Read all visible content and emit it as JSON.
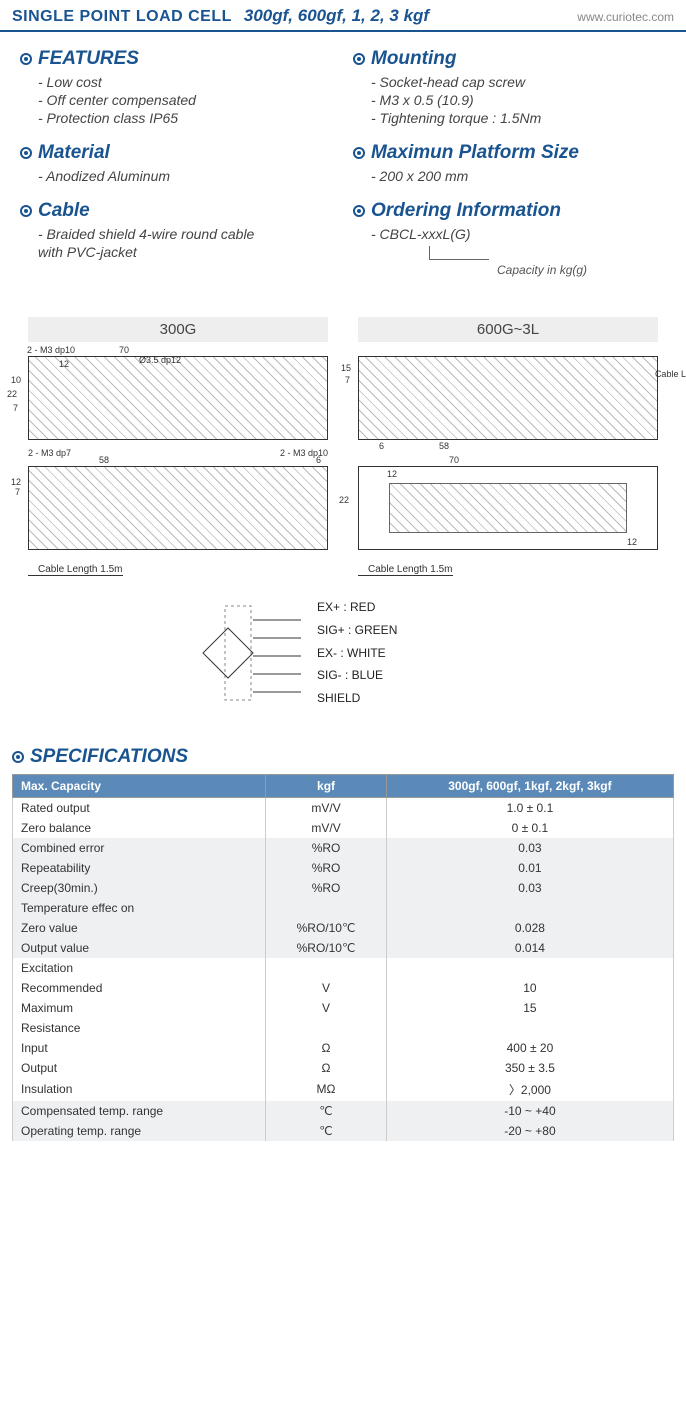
{
  "header": {
    "title": "SINGLE POINT LOAD CELL",
    "subtitle": "300gf, 600gf, 1, 2, 3 kgf",
    "url": "www.curiotec.com"
  },
  "left_sections": [
    {
      "title": "FEATURES",
      "items": [
        "- Low cost",
        "- Off center compensated",
        "- Protection class IP65"
      ]
    },
    {
      "title": "Material",
      "items": [
        "- Anodized Aluminum"
      ]
    },
    {
      "title": "Cable",
      "items": [
        "- Braided shield 4-wire round cable",
        "  with PVC-jacket"
      ]
    }
  ],
  "right_sections": [
    {
      "title": "Mounting",
      "items": [
        "- Socket-head cap screw",
        "- M3 x 0.5 (10.9)",
        "- Tightening torque : 1.5Nm"
      ]
    },
    {
      "title": "Maximun Platform Size",
      "items": [
        "- 200 x 200 mm"
      ]
    },
    {
      "title": "Ordering Information",
      "items": [
        "- CBCL-xxxL(G)"
      ]
    }
  ],
  "ordering_caption": "Capacity in kg(g)",
  "diagrams": {
    "left_label": "300G",
    "right_label": "600G~3L",
    "dims_300g_top": [
      "2 - M3 dp10",
      "70",
      "12",
      "Ø3.5 dp12",
      "10",
      "22",
      "7",
      "2 - M3 dp7",
      "12",
      "2 - M3 dp10"
    ],
    "dims_300g_bot": [
      "58",
      "6",
      "12",
      "7"
    ],
    "dims_600_top": [
      "15",
      "7",
      "6",
      "58"
    ],
    "dims_600_bot": [
      "70",
      "12",
      "22",
      "12"
    ],
    "cable_note": "Cable Length 1.5m"
  },
  "wiring": [
    "EX+ : RED",
    "SIG+ : GREEN",
    "EX- : WHITE",
    "SIG- : BLUE",
    "SHIELD"
  ],
  "specs_title": "SPECIFICATIONS",
  "spec_header": {
    "c0": "Max. Capacity",
    "c1": "kgf",
    "c2": "300gf, 600gf, 1kgf, 2kgf, 3kgf"
  },
  "spec_rows": [
    {
      "shade": false,
      "label": "Rated output",
      "sub": "",
      "unit": "mV/V",
      "val": "1.0 ± 0.1"
    },
    {
      "shade": false,
      "label": "Zero balance",
      "sub": "",
      "unit": "mV/V",
      "val": "0 ± 0.1"
    },
    {
      "shade": true,
      "label": "Combined error",
      "sub": "",
      "unit": "%RO",
      "val": "0.03"
    },
    {
      "shade": true,
      "label": "Repeatability",
      "sub": "",
      "unit": "%RO",
      "val": "0.01"
    },
    {
      "shade": true,
      "label": "Creep(30min.)",
      "sub": "",
      "unit": "%RO",
      "val": "0.03"
    },
    {
      "shade": true,
      "label": "Temperature effec on",
      "sub": "",
      "unit": "",
      "val": ""
    },
    {
      "shade": true,
      "label": "",
      "sub": "Zero value",
      "unit": "%RO/10℃",
      "val": "0.028"
    },
    {
      "shade": true,
      "label": "",
      "sub": "Output value",
      "unit": "%RO/10℃",
      "val": "0.014"
    },
    {
      "shade": false,
      "label": "Excitation",
      "sub": "",
      "unit": "",
      "val": ""
    },
    {
      "shade": false,
      "label": "",
      "sub": "Recommended",
      "unit": "V",
      "val": "10"
    },
    {
      "shade": false,
      "label": "",
      "sub": "Maximum",
      "unit": "V",
      "val": "15"
    },
    {
      "shade": false,
      "label": "Resistance",
      "sub": "",
      "unit": "",
      "val": ""
    },
    {
      "shade": false,
      "label": "",
      "sub": "Input",
      "unit": "Ω",
      "val": "400  ±  20"
    },
    {
      "shade": false,
      "label": "",
      "sub": "Output",
      "unit": "Ω",
      "val": "350  ±  3.5"
    },
    {
      "shade": false,
      "label": "",
      "sub": "Insulation",
      "unit": "MΩ",
      "val": "〉2,000"
    },
    {
      "shade": true,
      "label": "Compensated temp. range",
      "sub": "",
      "unit": "℃",
      "val": "-10 ~ +40"
    },
    {
      "shade": true,
      "label": "Operating temp. range",
      "sub": "",
      "unit": "℃",
      "val": "-20 ~ +80"
    }
  ],
  "colors": {
    "brand": "#1a5490",
    "table_header_bg": "#5b8ab8",
    "shade_bg": "#eef0f2"
  }
}
